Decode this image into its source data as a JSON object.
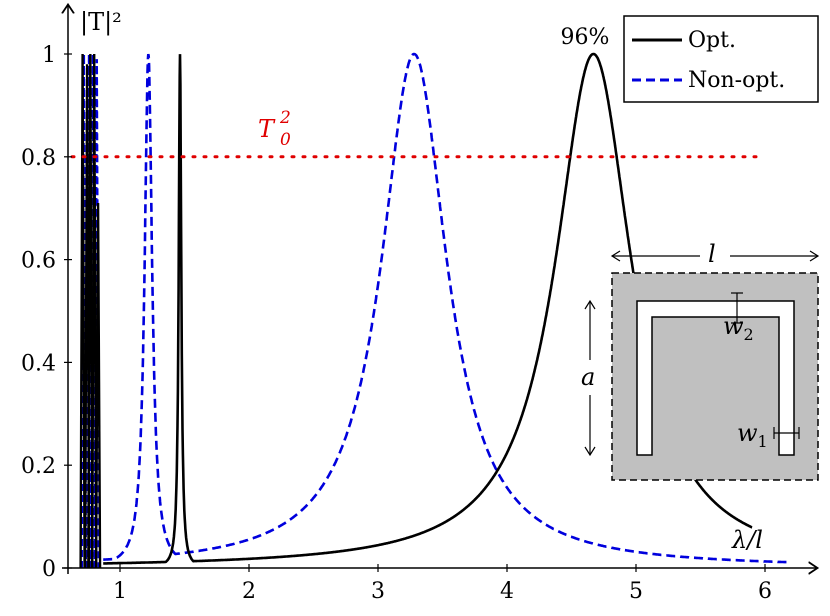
{
  "chart_data": {
    "type": "line",
    "xlabel": "λ/l",
    "ylabel": "|T|²",
    "xlim": [
      0.62,
      6.2
    ],
    "ylim": [
      0,
      1.05
    ],
    "x_ticks": [
      "1",
      "2",
      "3",
      "4",
      "5",
      "6"
    ],
    "y_ticks": [
      "0",
      "0.2",
      "0.4",
      "0.6",
      "0.8",
      "1"
    ],
    "x_tick_values": [
      1,
      2,
      3,
      4,
      5,
      6
    ],
    "y_tick_values": [
      0,
      0.2,
      0.4,
      0.6,
      0.8,
      1.0
    ],
    "grid": false,
    "legend": "top-right",
    "series": [
      {
        "name": "Opt.",
        "style": "solid",
        "color": "#000000",
        "resonances": [
          {
            "x0": 1.465,
            "width": 0.012,
            "peak": 1.0
          },
          {
            "x0": 4.67,
            "width": 0.36,
            "peak": 1.0
          }
        ]
      },
      {
        "name": "Non-opt.",
        "style": "dashed",
        "color": "#0000dd",
        "resonances": [
          {
            "x0": 1.22,
            "width": 0.035,
            "peak": 1.0
          },
          {
            "x0": 3.28,
            "width": 0.31,
            "peak": 1.0
          }
        ]
      }
    ],
    "threshold": {
      "label_base": "T",
      "label_sub": "0",
      "label_sup": "2",
      "value": 0.8,
      "color": "#e00000",
      "x_end": 6.0
    },
    "annotation": {
      "text": "96%",
      "x": 4.67,
      "y": 1.0
    },
    "inset": {
      "labels": {
        "l": "l",
        "a": "a",
        "w2_base": "w",
        "w2_sub": "2",
        "w1_base": "w",
        "w1_sub": "1"
      }
    }
  }
}
